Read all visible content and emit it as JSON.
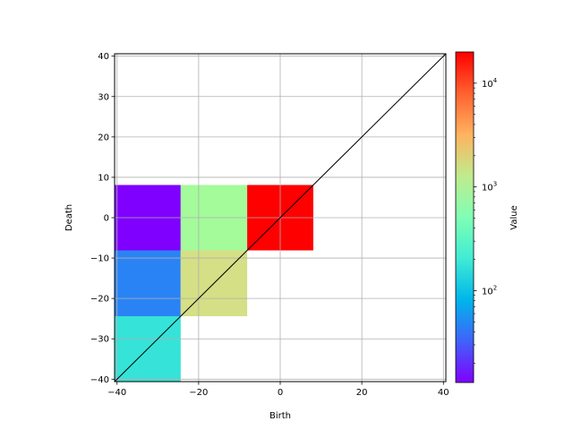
{
  "chart_data": {
    "type": "heatmap",
    "title": "",
    "xlabel": "Birth",
    "ylabel": "Death",
    "xlim": [
      -40.6,
      40.6
    ],
    "ylim": [
      -40.6,
      40.6
    ],
    "xticks": [
      -40,
      -20,
      0,
      20,
      40
    ],
    "yticks": [
      -40,
      -30,
      -20,
      -10,
      0,
      10,
      20,
      30,
      40
    ],
    "xtick_labels": [
      "−40",
      "−20",
      "0",
      "20",
      "40"
    ],
    "ytick_labels": [
      "−40",
      "−30",
      "−20",
      "−10",
      "0",
      "10",
      "20",
      "30",
      "40"
    ],
    "grid": true,
    "diagonal_line": {
      "from": [
        -40.6,
        -40.6
      ],
      "to": [
        40.6,
        40.6
      ],
      "color": "#000000"
    },
    "cells": [
      {
        "x0": -40.6,
        "x1": -24.4,
        "y0": -8.1,
        "y1": 8.1,
        "value": 14,
        "color": "#7f00ff"
      },
      {
        "x0": -24.4,
        "x1": -8.1,
        "y0": -8.1,
        "y1": 8.1,
        "value": 900,
        "color": "#a4fb9a"
      },
      {
        "x0": -8.1,
        "x1": 8.1,
        "y0": -8.1,
        "y1": 8.1,
        "value": 20000,
        "color": "#ff0000"
      },
      {
        "x0": -40.6,
        "x1": -24.4,
        "y0": -24.4,
        "y1": -8.1,
        "value": 40,
        "color": "#2a83f4"
      },
      {
        "x0": -24.4,
        "x1": -8.1,
        "y0": -24.4,
        "y1": -8.1,
        "value": 1700,
        "color": "#d5df85"
      },
      {
        "x0": -40.6,
        "x1": -24.4,
        "y0": -40.6,
        "y1": -24.4,
        "value": 200,
        "color": "#36e3d8"
      }
    ],
    "colorbar": {
      "label": "Value",
      "scale": "log",
      "range": [
        13,
        20000
      ],
      "ticks": [
        {
          "exponent": "2",
          "value": 100
        },
        {
          "exponent": "3",
          "value": 1000
        },
        {
          "exponent": "4",
          "value": 10000
        }
      ],
      "tick_base": "10",
      "colormap": [
        "#8000ff",
        "#4062fa",
        "#00b5eb",
        "#40ecd4",
        "#80ffb4",
        "#c0eb8d",
        "#ffb360",
        "#ff6130",
        "#ff0000"
      ]
    }
  }
}
